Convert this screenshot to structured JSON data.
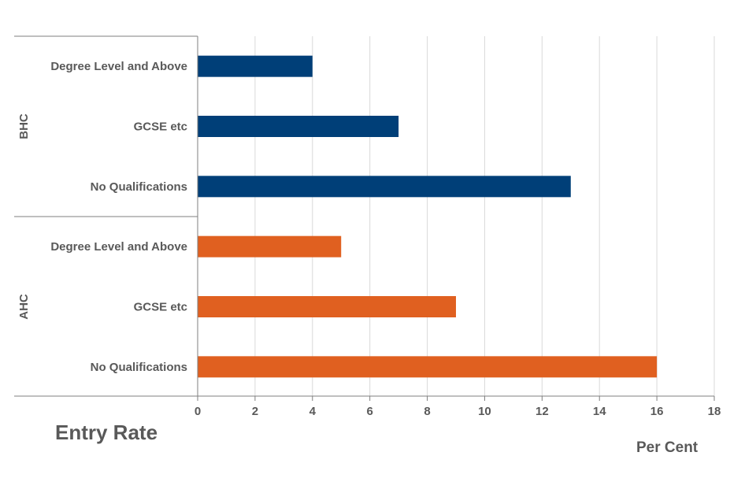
{
  "chart_data": {
    "type": "bar",
    "orientation": "horizontal",
    "title": "Entry Rate",
    "xlabel": "Per Cent",
    "xlim": [
      0,
      18
    ],
    "xticks": [
      0,
      2,
      4,
      6,
      8,
      10,
      12,
      14,
      16,
      18
    ],
    "grid": true,
    "groups": [
      {
        "name": "BHC",
        "color": "#003f78",
        "categories": [
          "Degree Level and Above",
          "GCSE etc",
          "No Qualifications"
        ],
        "values": [
          4,
          7,
          13
        ]
      },
      {
        "name": "AHC",
        "color": "#e06020",
        "categories": [
          "Degree Level and Above",
          "GCSE etc",
          "No Qualifications"
        ],
        "values": [
          5,
          9,
          16
        ]
      }
    ]
  }
}
